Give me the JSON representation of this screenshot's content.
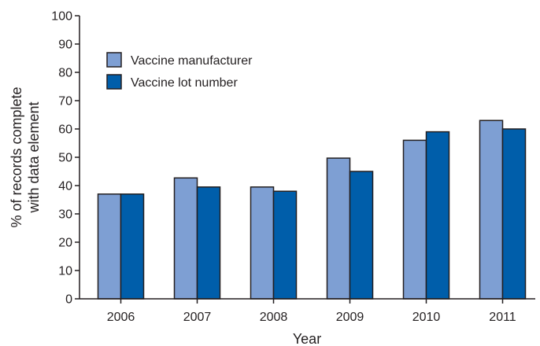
{
  "chart_data": {
    "type": "bar",
    "categories": [
      "2006",
      "2007",
      "2008",
      "2009",
      "2010",
      "2011"
    ],
    "series": [
      {
        "name": "Vaccine manufacturer",
        "values": [
          37,
          42.7,
          39.5,
          49.7,
          56,
          63
        ],
        "color": "#7e9fd3"
      },
      {
        "name": "Vaccine lot number",
        "values": [
          37,
          39.5,
          38,
          45,
          59,
          60
        ],
        "color": "#005eaa"
      }
    ],
    "title": "",
    "xlabel": "Year",
    "ylabel": "% of records complete with data element",
    "ylim": [
      0,
      100
    ],
    "yticks": [
      0,
      10,
      20,
      30,
      40,
      50,
      60,
      70,
      80,
      90,
      100
    ],
    "grid": false,
    "legend_position": "top-left"
  },
  "axis": {
    "xlabel": "Year",
    "ylabel_line1": "% of records complete",
    "ylabel_line2": "with data element"
  }
}
